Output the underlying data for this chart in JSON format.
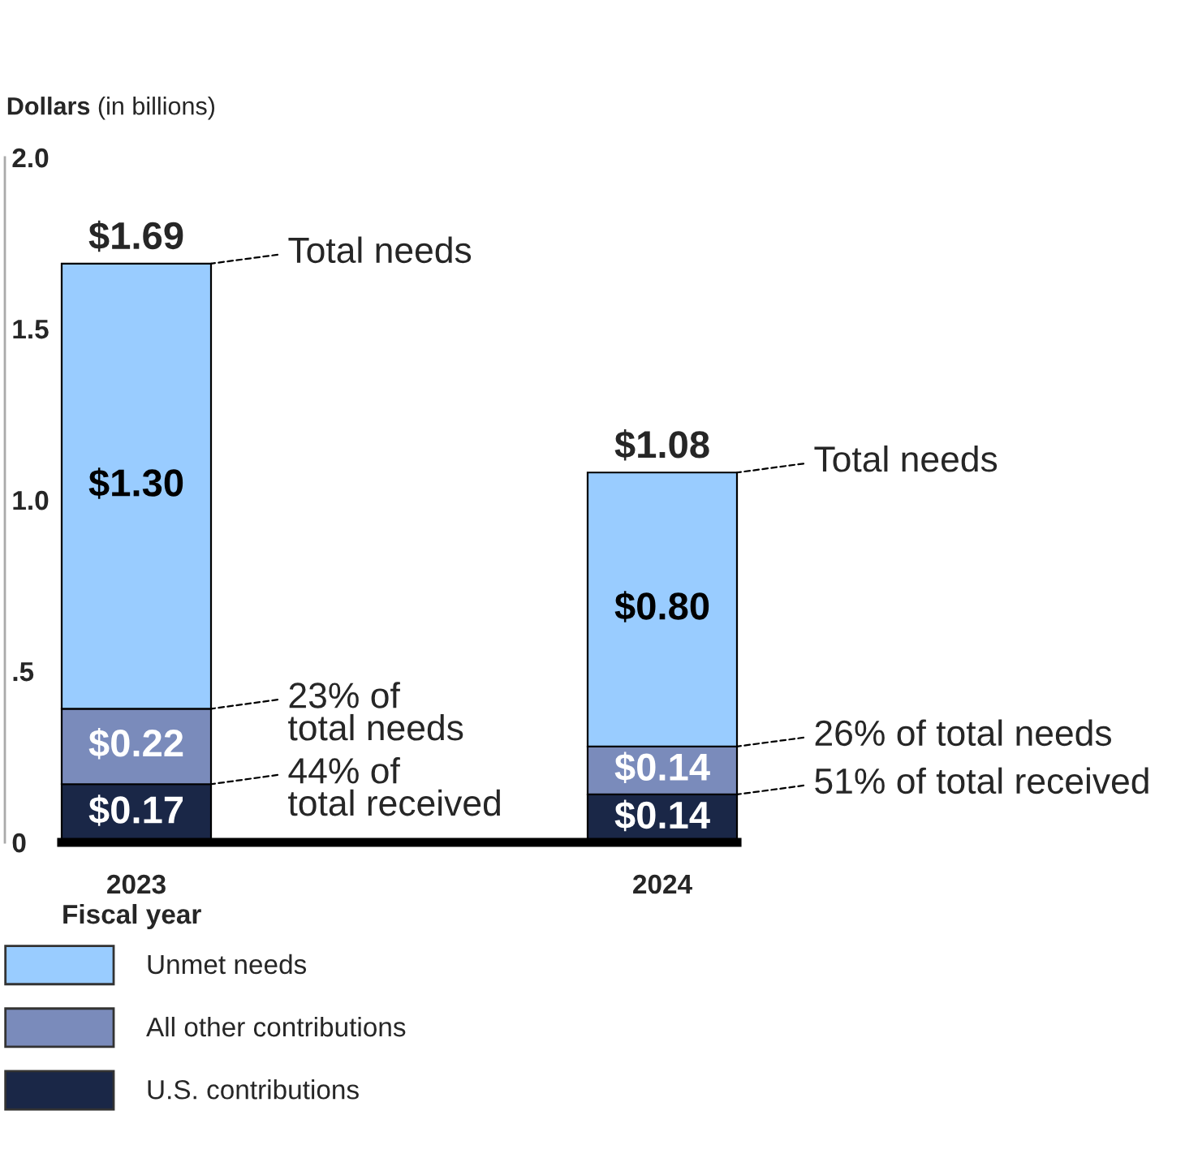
{
  "chart_data": {
    "type": "bar",
    "stacked": true,
    "ylabel": "Dollars (in billions)",
    "xlabel": "Fiscal year",
    "categories": [
      "2023",
      "2024"
    ],
    "series": [
      {
        "name": "U.S. contributions",
        "color": "#1a2747",
        "values": [
          0.17,
          0.14
        ],
        "value_labels": [
          "$0.17",
          "$0.14"
        ]
      },
      {
        "name": "All other contributions",
        "color": "#7a8bbb",
        "values": [
          0.22,
          0.14
        ],
        "value_labels": [
          "$0.22",
          "$0.14"
        ]
      },
      {
        "name": "Unmet needs",
        "color": "#99ccff",
        "values": [
          1.3,
          0.8
        ],
        "value_labels": [
          "$1.30",
          "$0.80"
        ]
      }
    ],
    "totals": [
      "$1.69",
      "$1.08"
    ],
    "ylim": [
      0,
      2.0
    ],
    "yticks": [
      0,
      {
        "value": 0.5,
        "label": ".5"
      },
      {
        "value": 1.0,
        "label": "1.0"
      },
      1.5,
      {
        "value": 2.0,
        "label": "2.0"
      }
    ],
    "annotations": [
      "Total needs",
      "23% of\ntotal needs",
      "44% of\ntotal received",
      "Total needs",
      "26% of total needs",
      "51% of total received"
    ],
    "grid": false,
    "legend": "bottom"
  }
}
